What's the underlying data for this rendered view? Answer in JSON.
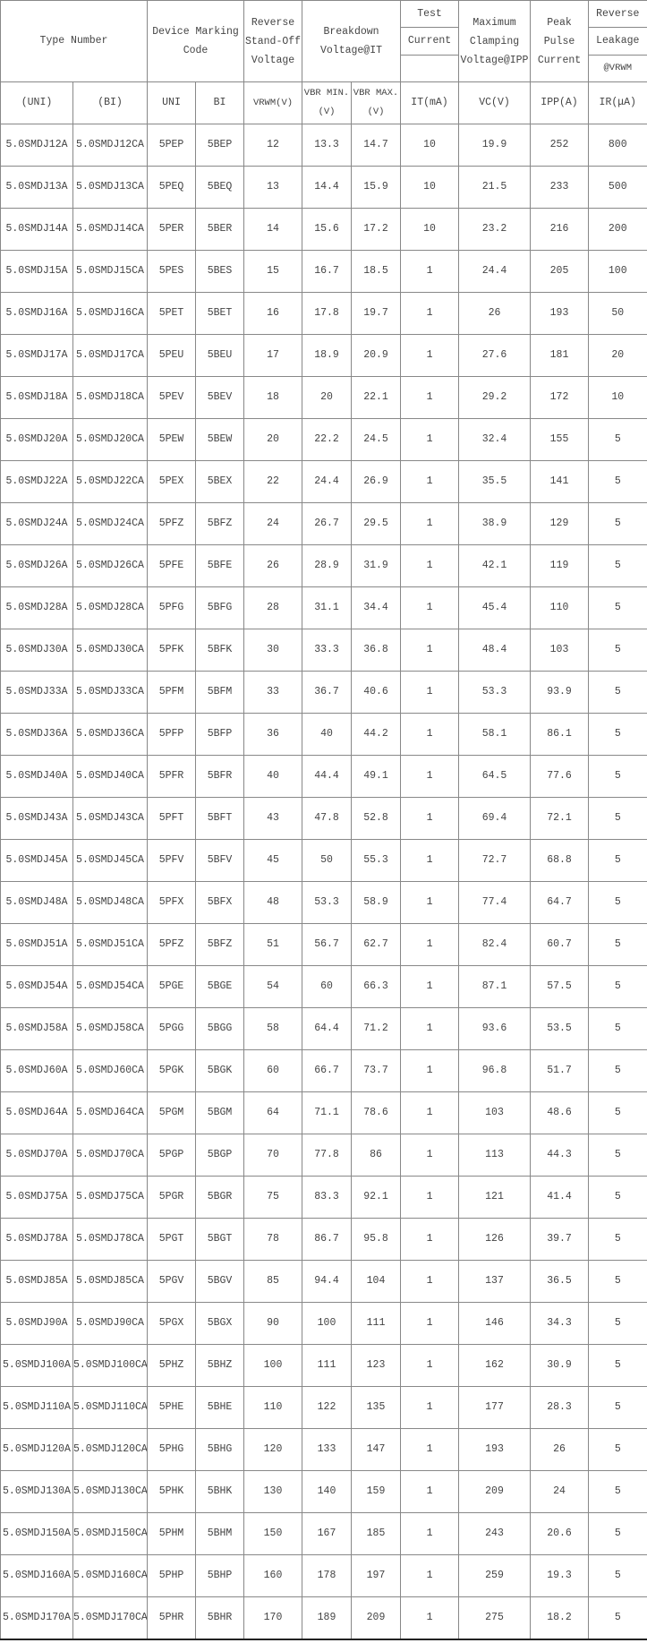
{
  "header": {
    "type_number": "Type Number",
    "marking_code": "Device Marking Code",
    "standoff": "Reverse Stand-Off Voltage",
    "breakdown": "Breakdown Voltage@IT",
    "test_1": "Test",
    "test_2": "Current",
    "test_3": "",
    "clamping": "Maximum Clamping Voltage@IPP",
    "peak": "Peak Pulse Current",
    "leak_1": "Reverse",
    "leak_2": "Leakage",
    "leak_3": "@VRWM"
  },
  "subheader": [
    "(UNI)",
    "(BI)",
    "UNI",
    "BI",
    "VRWM(V)",
    "VBR MIN.(V)",
    "VBR MAX.(V)",
    "IT(mA)",
    "VC(V)",
    "IPP(A)",
    "IR(μA)"
  ],
  "rows": [
    [
      "5.0SMDJ12A",
      "5.0SMDJ12CA",
      "5PEP",
      "5BEP",
      "12",
      "13.3",
      "14.7",
      "10",
      "19.9",
      "252",
      "800"
    ],
    [
      "5.0SMDJ13A",
      "5.0SMDJ13CA",
      "5PEQ",
      "5BEQ",
      "13",
      "14.4",
      "15.9",
      "10",
      "21.5",
      "233",
      "500"
    ],
    [
      "5.0SMDJ14A",
      "5.0SMDJ14CA",
      "5PER",
      "5BER",
      "14",
      "15.6",
      "17.2",
      "10",
      "23.2",
      "216",
      "200"
    ],
    [
      "5.0SMDJ15A",
      "5.0SMDJ15CA",
      "5PES",
      "5BES",
      "15",
      "16.7",
      "18.5",
      "1",
      "24.4",
      "205",
      "100"
    ],
    [
      "5.0SMDJ16A",
      "5.0SMDJ16CA",
      "5PET",
      "5BET",
      "16",
      "17.8",
      "19.7",
      "1",
      "26",
      "193",
      "50"
    ],
    [
      "5.0SMDJ17A",
      "5.0SMDJ17CA",
      "5PEU",
      "5BEU",
      "17",
      "18.9",
      "20.9",
      "1",
      "27.6",
      "181",
      "20"
    ],
    [
      "5.0SMDJ18A",
      "5.0SMDJ18CA",
      "5PEV",
      "5BEV",
      "18",
      "20",
      "22.1",
      "1",
      "29.2",
      "172",
      "10"
    ],
    [
      "5.0SMDJ20A",
      "5.0SMDJ20CA",
      "5PEW",
      "5BEW",
      "20",
      "22.2",
      "24.5",
      "1",
      "32.4",
      "155",
      "5"
    ],
    [
      "5.0SMDJ22A",
      "5.0SMDJ22CA",
      "5PEX",
      "5BEX",
      "22",
      "24.4",
      "26.9",
      "1",
      "35.5",
      "141",
      "5"
    ],
    [
      "5.0SMDJ24A",
      "5.0SMDJ24CA",
      "5PFZ",
      "5BFZ",
      "24",
      "26.7",
      "29.5",
      "1",
      "38.9",
      "129",
      "5"
    ],
    [
      "5.0SMDJ26A",
      "5.0SMDJ26CA",
      "5PFE",
      "5BFE",
      "26",
      "28.9",
      "31.9",
      "1",
      "42.1",
      "119",
      "5"
    ],
    [
      "5.0SMDJ28A",
      "5.0SMDJ28CA",
      "5PFG",
      "5BFG",
      "28",
      "31.1",
      "34.4",
      "1",
      "45.4",
      "110",
      "5"
    ],
    [
      "5.0SMDJ30A",
      "5.0SMDJ30CA",
      "5PFK",
      "5BFK",
      "30",
      "33.3",
      "36.8",
      "1",
      "48.4",
      "103",
      "5"
    ],
    [
      "5.0SMDJ33A",
      "5.0SMDJ33CA",
      "5PFM",
      "5BFM",
      "33",
      "36.7",
      "40.6",
      "1",
      "53.3",
      "93.9",
      "5"
    ],
    [
      "5.0SMDJ36A",
      "5.0SMDJ36CA",
      "5PFP",
      "5BFP",
      "36",
      "40",
      "44.2",
      "1",
      "58.1",
      "86.1",
      "5"
    ],
    [
      "5.0SMDJ40A",
      "5.0SMDJ40CA",
      "5PFR",
      "5BFR",
      "40",
      "44.4",
      "49.1",
      "1",
      "64.5",
      "77.6",
      "5"
    ],
    [
      "5.0SMDJ43A",
      "5.0SMDJ43CA",
      "5PFT",
      "5BFT",
      "43",
      "47.8",
      "52.8",
      "1",
      "69.4",
      "72.1",
      "5"
    ],
    [
      "5.0SMDJ45A",
      "5.0SMDJ45CA",
      "5PFV",
      "5BFV",
      "45",
      "50",
      "55.3",
      "1",
      "72.7",
      "68.8",
      "5"
    ],
    [
      "5.0SMDJ48A",
      "5.0SMDJ48CA",
      "5PFX",
      "5BFX",
      "48",
      "53.3",
      "58.9",
      "1",
      "77.4",
      "64.7",
      "5"
    ],
    [
      "5.0SMDJ51A",
      "5.0SMDJ51CA",
      "5PFZ",
      "5BFZ",
      "51",
      "56.7",
      "62.7",
      "1",
      "82.4",
      "60.7",
      "5"
    ],
    [
      "5.0SMDJ54A",
      "5.0SMDJ54CA",
      "5PGE",
      "5BGE",
      "54",
      "60",
      "66.3",
      "1",
      "87.1",
      "57.5",
      "5"
    ],
    [
      "5.0SMDJ58A",
      "5.0SMDJ58CA",
      "5PGG",
      "5BGG",
      "58",
      "64.4",
      "71.2",
      "1",
      "93.6",
      "53.5",
      "5"
    ],
    [
      "5.0SMDJ60A",
      "5.0SMDJ60CA",
      "5PGK",
      "5BGK",
      "60",
      "66.7",
      "73.7",
      "1",
      "96.8",
      "51.7",
      "5"
    ],
    [
      "5.0SMDJ64A",
      "5.0SMDJ64CA",
      "5PGM",
      "5BGM",
      "64",
      "71.1",
      "78.6",
      "1",
      "103",
      "48.6",
      "5"
    ],
    [
      "5.0SMDJ70A",
      "5.0SMDJ70CA",
      "5PGP",
      "5BGP",
      "70",
      "77.8",
      "86",
      "1",
      "113",
      "44.3",
      "5"
    ],
    [
      "5.0SMDJ75A",
      "5.0SMDJ75CA",
      "5PGR",
      "5BGR",
      "75",
      "83.3",
      "92.1",
      "1",
      "121",
      "41.4",
      "5"
    ],
    [
      "5.0SMDJ78A",
      "5.0SMDJ78CA",
      "5PGT",
      "5BGT",
      "78",
      "86.7",
      "95.8",
      "1",
      "126",
      "39.7",
      "5"
    ],
    [
      "5.0SMDJ85A",
      "5.0SMDJ85CA",
      "5PGV",
      "5BGV",
      "85",
      "94.4",
      "104",
      "1",
      "137",
      "36.5",
      "5"
    ],
    [
      "5.0SMDJ90A",
      "5.0SMDJ90CA",
      "5PGX",
      "5BGX",
      "90",
      "100",
      "111",
      "1",
      "146",
      "34.3",
      "5"
    ],
    [
      "5.0SMDJ100A",
      "5.0SMDJ100CA",
      "5PHZ",
      "5BHZ",
      "100",
      "111",
      "123",
      "1",
      "162",
      "30.9",
      "5"
    ],
    [
      "5.0SMDJ110A",
      "5.0SMDJ110CA",
      "5PHE",
      "5BHE",
      "110",
      "122",
      "135",
      "1",
      "177",
      "28.3",
      "5"
    ],
    [
      "5.0SMDJ120A",
      "5.0SMDJ120CA",
      "5PHG",
      "5BHG",
      "120",
      "133",
      "147",
      "1",
      "193",
      "26",
      "5"
    ],
    [
      "5.0SMDJ130A",
      "5.0SMDJ130CA",
      "5PHK",
      "5BHK",
      "130",
      "140",
      "159",
      "1",
      "209",
      "24",
      "5"
    ],
    [
      "5.0SMDJ150A",
      "5.0SMDJ150CA",
      "5PHM",
      "5BHM",
      "150",
      "167",
      "185",
      "1",
      "243",
      "20.6",
      "5"
    ],
    [
      "5.0SMDJ160A",
      "5.0SMDJ160CA",
      "5PHP",
      "5BHP",
      "160",
      "178",
      "197",
      "1",
      "259",
      "19.3",
      "5"
    ],
    [
      "5.0SMDJ170A",
      "5.0SMDJ170CA",
      "5PHR",
      "5BHR",
      "170",
      "189",
      "209",
      "1",
      "275",
      "18.2",
      "5"
    ]
  ]
}
